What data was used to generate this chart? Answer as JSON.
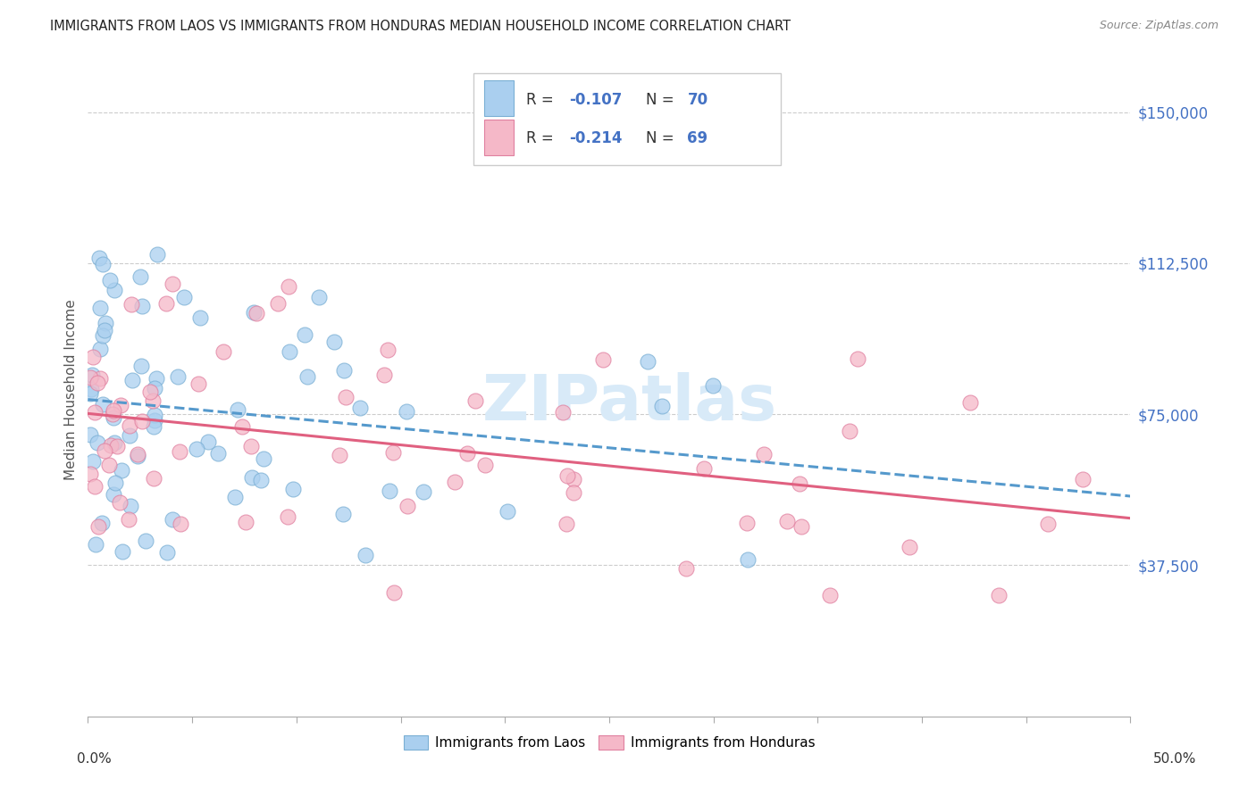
{
  "title": "IMMIGRANTS FROM LAOS VS IMMIGRANTS FROM HONDURAS MEDIAN HOUSEHOLD INCOME CORRELATION CHART",
  "source": "Source: ZipAtlas.com",
  "ylabel": "Median Household Income",
  "xmin": 0.0,
  "xmax": 0.5,
  "ymin": 0,
  "ymax": 162000,
  "laos_color": "#aacfef",
  "laos_edge_color": "#7aafd4",
  "honduras_color": "#f5b8c8",
  "honduras_edge_color": "#e080a0",
  "laos_R": -0.107,
  "laos_N": 70,
  "honduras_R": -0.214,
  "honduras_N": 69,
  "trend_laos_color": "#5599cc",
  "trend_honduras_color": "#e06080",
  "watermark_color": "#d8eaf8",
  "legend_label_laos": "Immigrants from Laos",
  "legend_label_honduras": "Immigrants from Honduras",
  "ytick_vals": [
    37500,
    75000,
    112500,
    150000
  ],
  "ytick_labels": [
    "$37,500",
    "$75,000",
    "$112,500",
    "$150,000"
  ],
  "xtick_vals": [
    0.0,
    0.05,
    0.1,
    0.15,
    0.2,
    0.25,
    0.3,
    0.35,
    0.4,
    0.45,
    0.5
  ],
  "r_text_color": "#4472c4",
  "n_text_color": "#4472c4",
  "axis_label_color": "#4472c4",
  "title_color": "#222222"
}
